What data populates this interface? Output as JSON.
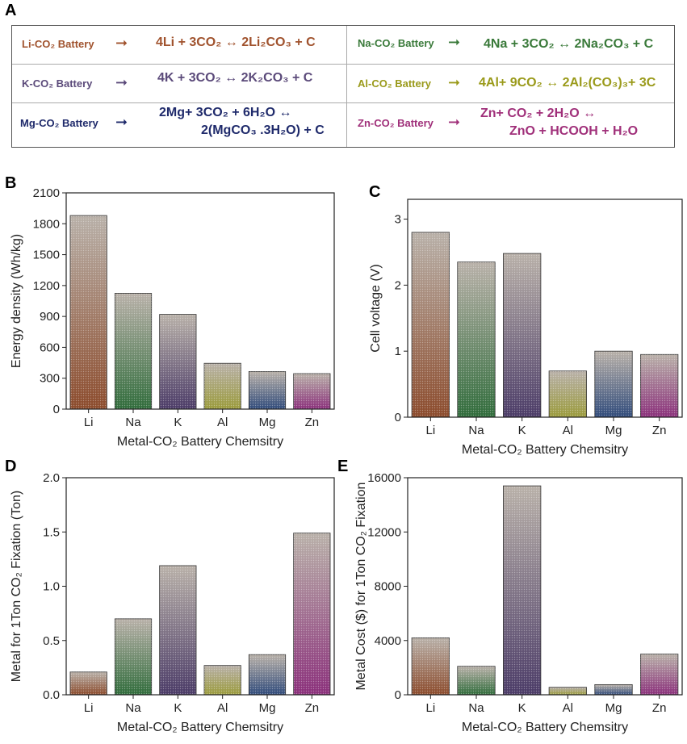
{
  "panel_labels": {
    "a": "A",
    "b": "B",
    "c": "C",
    "d": "D",
    "e": "E"
  },
  "reactions": [
    {
      "battery": "Li-CO₂ Battery",
      "color": "#a0522d",
      "eq1": "4Li + 3CO₂ ↔ 2Li₂CO₃ + C",
      "eq2": ""
    },
    {
      "battery": "K-CO₂ Battery",
      "color": "#5b4a7a",
      "eq1": "4K + 3CO₂  ↔ 2K₂CO₃ + C",
      "eq2": ""
    },
    {
      "battery": "Mg-CO₂ Battery",
      "color": "#1f2a6b",
      "eq1": "2Mg+ 3CO₂ + 6H₂O ↔",
      "eq2": "2(MgCO₃ .3H₂O) + C"
    },
    {
      "battery": "Na-CO₂ Battery",
      "color": "#3a7a3a",
      "eq1": "4Na + 3CO₂  ↔ 2Na₂CO₃ + C",
      "eq2": ""
    },
    {
      "battery": "Al-CO₂ Battery",
      "color": "#9a9a1a",
      "eq1": "4Al+ 9CO₂ ↔ 2Al₂(CO₃)₃+ 3C",
      "eq2": ""
    },
    {
      "battery": "Zn-CO₂ Battery",
      "color": "#a0307a",
      "eq1": "Zn+ CO₂ + 2H₂O ↔",
      "eq2": "ZnO + HCOOH + H₂O"
    }
  ],
  "arrow_glyph": "➞",
  "chart_data": [
    {
      "id": "B",
      "type": "bar",
      "categories": [
        "Li",
        "Na",
        "K",
        "Al",
        "Mg",
        "Zn"
      ],
      "values": [
        1880,
        1125,
        920,
        445,
        365,
        345
      ],
      "ylabel": "Energy density (Wh/kg)",
      "xlabel": "Metal-CO₂ Battery Chemsitry",
      "ylim": [
        0,
        2100
      ],
      "yticks": [
        0,
        300,
        600,
        900,
        1200,
        1500,
        1800,
        2100
      ],
      "ytick_labels": [
        "0",
        "300",
        "600",
        "900",
        "1200",
        "1500",
        "1800",
        "2100"
      ]
    },
    {
      "id": "C",
      "type": "bar",
      "categories": [
        "Li",
        "Na",
        "K",
        "Al",
        "Mg",
        "Zn"
      ],
      "values": [
        2.8,
        2.35,
        2.48,
        0.7,
        1.0,
        0.95
      ],
      "ylabel": "Cell voltage (V)",
      "xlabel": "Metal-CO₂ Battery Chemsitry",
      "ylim": [
        0,
        3.3
      ],
      "yticks": [
        0,
        1,
        2,
        3
      ],
      "ytick_labels": [
        "0",
        "1",
        "2",
        "3"
      ]
    },
    {
      "id": "D",
      "type": "bar",
      "categories": [
        "Li",
        "Na",
        "K",
        "Al",
        "Mg",
        "Zn"
      ],
      "values": [
        0.21,
        0.7,
        1.19,
        0.27,
        0.37,
        1.49
      ],
      "ylabel": "Metal for 1Ton CO₂ Fixation (Ton)",
      "xlabel": "Metal-CO₂ Battery Chemsitry",
      "ylim": [
        0,
        2.0
      ],
      "yticks": [
        0,
        0.5,
        1.0,
        1.5,
        2.0
      ],
      "ytick_labels": [
        "0.0",
        "0.5",
        "1.0",
        "1.5",
        "2.0"
      ]
    },
    {
      "id": "E",
      "type": "bar",
      "categories": [
        "Li",
        "Na",
        "K",
        "Al",
        "Mg",
        "Zn"
      ],
      "values": [
        4200,
        2100,
        15400,
        550,
        750,
        3000
      ],
      "ylabel": "Metal Cost ($) for 1Ton CO₂ Fixation",
      "xlabel": "Metal-CO₂ Battery Chemsitry",
      "ylim": [
        0,
        16000
      ],
      "yticks": [
        0,
        4000,
        8000,
        12000,
        16000
      ],
      "ytick_labels": [
        "0",
        "4000",
        "8000",
        "12000",
        "16000"
      ]
    }
  ],
  "bar_colors": [
    "#8b4a2b",
    "#2f6b3a",
    "#4a3a66",
    "#9a9a3a",
    "#2f4a7a",
    "#8a2f7a"
  ]
}
